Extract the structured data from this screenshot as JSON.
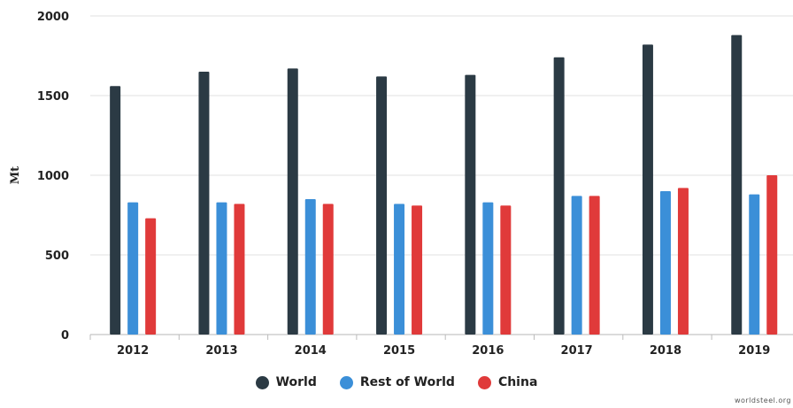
{
  "chart_data": {
    "type": "bar",
    "categories": [
      "2012",
      "2013",
      "2014",
      "2015",
      "2016",
      "2017",
      "2018",
      "2019"
    ],
    "series": [
      {
        "name": "World",
        "values": [
          1560,
          1650,
          1670,
          1620,
          1630,
          1740,
          1820,
          1880
        ],
        "color": "#2b3a44"
      },
      {
        "name": "Rest of World",
        "values": [
          830,
          830,
          850,
          820,
          830,
          870,
          900,
          880
        ],
        "color": "#3b8fd8"
      },
      {
        "name": "China",
        "values": [
          730,
          820,
          820,
          810,
          810,
          870,
          920,
          1000
        ],
        "color": "#e03a3a"
      }
    ],
    "ylabel": "Mt",
    "yticks": [
      0,
      500,
      1000,
      1500,
      2000
    ],
    "ylim": [
      0,
      2000
    ],
    "grid": true,
    "legend_position": "bottom"
  },
  "source_text": "worldsteel.org"
}
